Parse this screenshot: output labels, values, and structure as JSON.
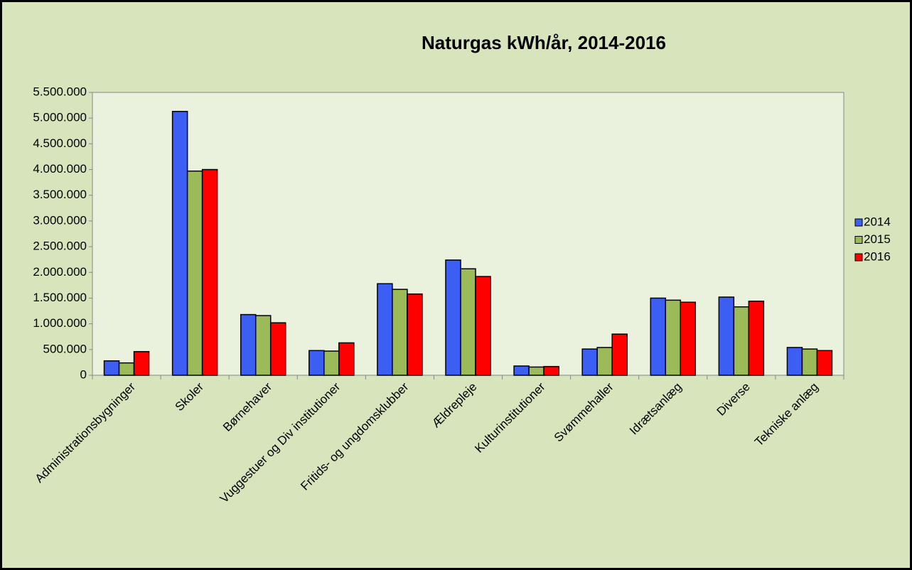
{
  "chart_data": {
    "type": "bar",
    "title": "Naturgas kWh/år, 2014-2016",
    "categories": [
      "Administrationsbygninger",
      "Skoler",
      "Børnehaver",
      "Vuggestuer og Div institutioner",
      "Fritids- og ungdomsklubber",
      "Ældrepleje",
      "Kulturinstitutioner",
      "Svømmehaller",
      "Idrætsanlæg",
      "Diverse",
      "Tekniske anlæg"
    ],
    "series": [
      {
        "name": "2014",
        "color": "#3c5ef2",
        "values": [
          280000,
          5130000,
          1180000,
          480000,
          1780000,
          2240000,
          180000,
          510000,
          1500000,
          1520000,
          540000
        ]
      },
      {
        "name": "2015",
        "color": "#9bbb59",
        "values": [
          240000,
          3970000,
          1160000,
          470000,
          1670000,
          2070000,
          160000,
          540000,
          1460000,
          1330000,
          510000
        ]
      },
      {
        "name": "2016",
        "color": "#ff0000",
        "values": [
          460000,
          4000000,
          1020000,
          630000,
          1580000,
          1920000,
          170000,
          800000,
          1420000,
          1440000,
          480000
        ]
      }
    ],
    "ylim": [
      0,
      5500000
    ],
    "yticks": [
      0,
      {
        "value": 500000,
        "label": "500.000"
      },
      {
        "value": 1000000,
        "label": "1.000.000"
      },
      {
        "value": 1500000,
        "label": "1.500.000"
      },
      {
        "value": 2000000,
        "label": "2.000.000"
      },
      {
        "value": 2500000,
        "label": "2.500.000"
      },
      {
        "value": 3000000,
        "label": "3.000.000"
      },
      {
        "value": 3500000,
        "label": "3.500.000"
      },
      {
        "value": 4000000,
        "label": "4.000.000"
      },
      {
        "value": 4500000,
        "label": "4.500.000"
      },
      {
        "value": 5000000,
        "label": "5.000.000"
      },
      {
        "value": 5500000,
        "label": "5.500.000"
      }
    ],
    "grid": false,
    "legend": "right"
  }
}
